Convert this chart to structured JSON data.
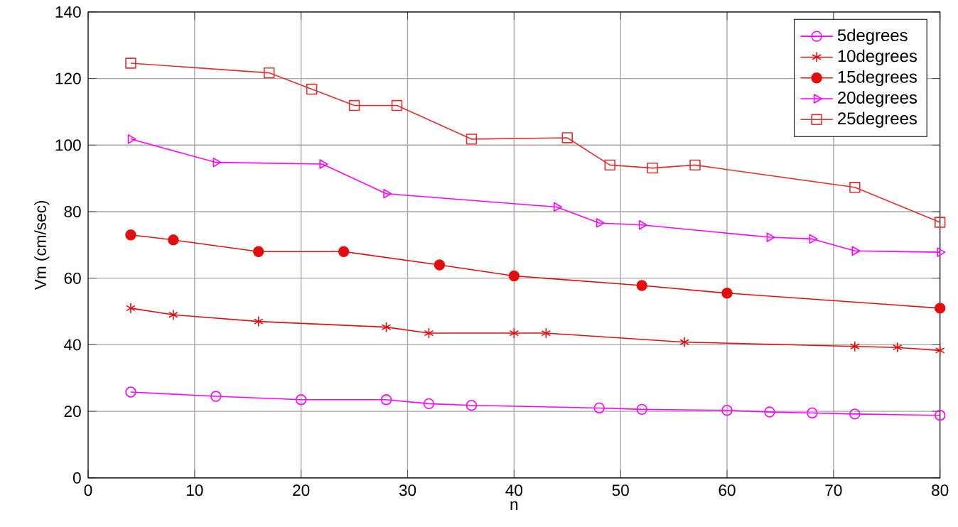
{
  "chart_data": {
    "type": "line",
    "xlabel": "n",
    "ylabel": "Vm (cm/sec)",
    "xlim": [
      0,
      80
    ],
    "xticks": [
      0,
      10,
      20,
      30,
      40,
      50,
      60,
      70,
      80
    ],
    "ylim": [
      0,
      140
    ],
    "yticks": [
      0,
      20,
      40,
      60,
      80,
      100,
      120,
      140
    ],
    "grid": true,
    "legend": "top right",
    "line_style": "solid",
    "series": [
      {
        "name": "5degrees",
        "color": "#ff00ff",
        "marker": "circle",
        "x": [
          4,
          12,
          20,
          28,
          32,
          36,
          48,
          52,
          60,
          64,
          68,
          72,
          80
        ],
        "values": [
          25.8,
          24.5,
          23.5,
          23.5,
          22.3,
          21.8,
          21,
          20.6,
          20.3,
          19.8,
          19.5,
          19.2,
          18.8
        ]
      },
      {
        "name": "10degrees",
        "color": "#e01010",
        "marker": "cross",
        "x": [
          4,
          8,
          16,
          28,
          32,
          40,
          43,
          56,
          72,
          76,
          80
        ],
        "values": [
          51,
          49,
          47,
          45.3,
          43.5,
          43.5,
          43.5,
          40.8,
          39.5,
          39.2,
          38.3
        ]
      },
      {
        "name": "15degrees",
        "color": "#e01010",
        "marker": "circle_filled",
        "x": [
          4,
          8,
          16,
          24,
          33,
          40,
          52,
          60,
          80
        ],
        "values": [
          73,
          71.5,
          68,
          68,
          64,
          60.7,
          57.8,
          55.5,
          51
        ]
      },
      {
        "name": "20degrees",
        "color": "#ff00ff",
        "marker": "triangle",
        "x": [
          4,
          12,
          22,
          28,
          44,
          48,
          52,
          64,
          68,
          72,
          80
        ],
        "values": [
          101.8,
          94.8,
          94.3,
          85.4,
          81.4,
          76.6,
          76,
          72.3,
          71.8,
          68.2,
          67.8
        ]
      },
      {
        "name": "25degrees",
        "color": "#e03030",
        "marker": "square",
        "x": [
          4,
          17,
          21,
          25,
          29,
          36,
          45,
          49,
          53,
          57,
          72,
          80
        ],
        "values": [
          124.6,
          121.7,
          116.8,
          111.9,
          111.9,
          101.8,
          102.2,
          94,
          93.1,
          94,
          87.3,
          76.8
        ]
      }
    ]
  }
}
